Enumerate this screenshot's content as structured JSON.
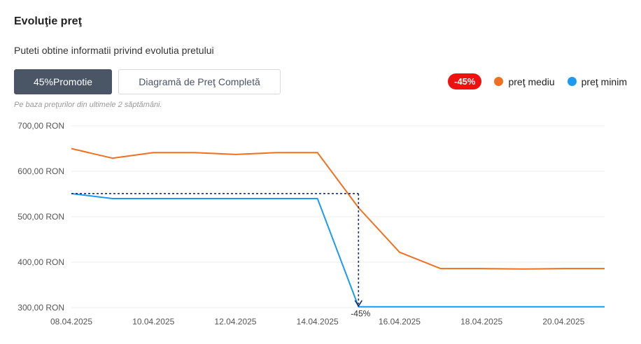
{
  "header": {
    "title": "Evoluţie preţ",
    "subtitle": "Puteti obtine informatii privind evolutia pretului"
  },
  "buttons": {
    "promo_label": "45%Promotie",
    "full_chart_label": "Diagramă de Preţ Completă"
  },
  "note": "Pe baza preţurilor din ultimele 2 săptămâni.",
  "legend": {
    "badge": "-45%",
    "items": [
      {
        "label": "preţ mediu",
        "color": "#f07020"
      },
      {
        "label": "preţ minim",
        "color": "#1a9bf0"
      }
    ]
  },
  "chart_data": {
    "type": "line",
    "x": [
      "08.04.2025",
      "09.04.2025",
      "10.04.2025",
      "11.04.2025",
      "12.04.2025",
      "13.04.2025",
      "14.04.2025",
      "15.04.2025",
      "16.04.2025",
      "17.04.2025",
      "18.04.2025",
      "19.04.2025",
      "20.04.2025",
      "21.04.2025"
    ],
    "x_ticks": [
      "08.04.2025",
      "10.04.2025",
      "12.04.2025",
      "14.04.2025",
      "16.04.2025",
      "18.04.2025",
      "20.04.2025"
    ],
    "y_ticks": [
      "700,00 RON",
      "600,00 RON",
      "500,00 RON",
      "400,00 RON",
      "300,00 RON"
    ],
    "y_tick_values": [
      700,
      600,
      500,
      400,
      300
    ],
    "ylim": [
      300,
      700
    ],
    "series": [
      {
        "name": "preţ mediu",
        "color": "#f07020",
        "values": [
          650,
          629,
          641,
          641,
          637,
          641,
          641,
          520,
          422,
          386,
          386,
          385,
          386,
          386
        ]
      },
      {
        "name": "preţ minim",
        "color": "#1a9bf0",
        "values": [
          551,
          540,
          540,
          540,
          540,
          540,
          540,
          302,
          302,
          302,
          302,
          302,
          302,
          302
        ]
      }
    ],
    "annotation": {
      "label": "-45%",
      "from_value": 551,
      "to_value": 302,
      "at_x": "15.04.2025",
      "color": "#1a2f6b"
    },
    "grid": true
  }
}
